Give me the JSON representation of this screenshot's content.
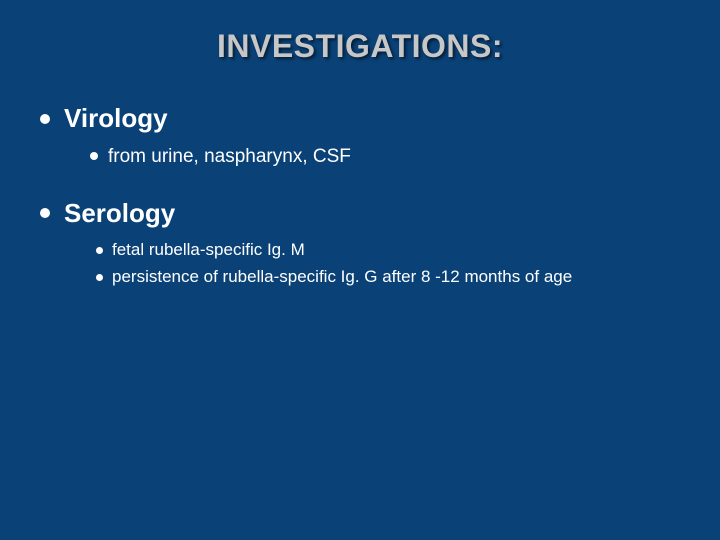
{
  "slide": {
    "title": "INVESTIGATIONS:",
    "background_color": "#0a4278",
    "title_color": "#c7c7c7",
    "text_color": "#ffffff",
    "bullet_color": "#ffffff",
    "title_fontsize": 32,
    "h1_fontsize": 26,
    "sub_fontsize": 19,
    "sub2_fontsize": 17,
    "sections": [
      {
        "heading": "Virology",
        "items": [
          {
            "text": "from urine, naspharynx, CSF"
          }
        ]
      },
      {
        "heading": "Serology",
        "items": [
          {
            "text": "fetal rubella-specific Ig. M"
          },
          {
            "text": "persistence of rubella-specific Ig. G after 8 -12 months of age"
          }
        ]
      }
    ]
  }
}
